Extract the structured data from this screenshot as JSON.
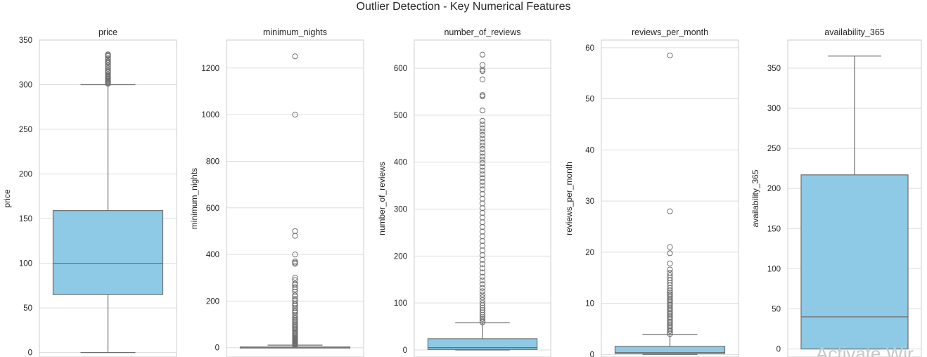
{
  "figure_title": "Outlier Detection - Key Numerical Features",
  "watermark_text": "Activate Wir",
  "colors": {
    "box_fill": "#8ecae6",
    "box_edge": "#6e6e6e",
    "grid": "#dddddd",
    "frame": "#cccccc",
    "text": "#262626"
  },
  "chart_data": [
    {
      "type": "box",
      "title": "price",
      "ylabel": "price",
      "ylim": [
        -5,
        350
      ],
      "yticks": [
        0,
        50,
        100,
        150,
        200,
        250,
        300,
        350
      ],
      "box": {
        "whisker_low": 0,
        "q1": 65,
        "median": 100,
        "q3": 159,
        "whisker_high": 300
      },
      "outliers": [
        301,
        302,
        303,
        304,
        305,
        306,
        307,
        308,
        309,
        310,
        312,
        314,
        315,
        316,
        318,
        320,
        322,
        324,
        325,
        326,
        328,
        330,
        332,
        333,
        334
      ]
    },
    {
      "type": "box",
      "title": "minimum_nights",
      "ylabel": "minimum_nights",
      "ylim": [
        -40,
        1320
      ],
      "yticks": [
        0,
        200,
        400,
        600,
        800,
        1000,
        1200
      ],
      "box": {
        "whisker_low": 1,
        "q1": 1,
        "median": 2,
        "q3": 3,
        "whisker_high": 11
      },
      "outliers": [
        12,
        14,
        15,
        16,
        18,
        20,
        21,
        22,
        25,
        27,
        28,
        30,
        31,
        32,
        35,
        38,
        40,
        42,
        45,
        50,
        55,
        60,
        62,
        65,
        70,
        75,
        80,
        85,
        90,
        95,
        100,
        110,
        115,
        120,
        125,
        130,
        140,
        150,
        155,
        160,
        170,
        180,
        185,
        190,
        200,
        210,
        220,
        225,
        240,
        250,
        260,
        270,
        275,
        290,
        300,
        360,
        365,
        370,
        400,
        480,
        500,
        1000,
        1250
      ]
    },
    {
      "type": "box",
      "title": "number_of_reviews",
      "ylabel": "number_of_reviews",
      "ylim": [
        -15,
        660
      ],
      "yticks": [
        0,
        100,
        200,
        300,
        400,
        500,
        600
      ],
      "box": {
        "whisker_low": 0,
        "q1": 1,
        "median": 5,
        "q3": 24,
        "whisker_high": 58
      },
      "outliers": [
        59,
        62,
        66,
        70,
        75,
        80,
        85,
        90,
        95,
        100,
        106,
        112,
        118,
        125,
        132,
        140,
        148,
        156,
        165,
        174,
        183,
        192,
        202,
        212,
        222,
        232,
        242,
        252,
        262,
        272,
        282,
        292,
        302,
        312,
        322,
        332,
        342,
        350,
        358,
        366,
        374,
        382,
        390,
        398,
        405,
        412,
        420,
        428,
        435,
        442,
        450,
        458,
        465,
        472,
        480,
        488,
        510,
        540,
        543,
        576,
        594,
        597,
        607,
        629
      ]
    },
    {
      "type": "box",
      "title": "reviews_per_month",
      "ylabel": "reviews_per_month",
      "ylim": [
        -0.5,
        61.5
      ],
      "yticks": [
        0,
        10,
        20,
        30,
        40,
        50,
        60
      ],
      "box": {
        "whisker_low": 0.01,
        "q1": 0.19,
        "median": 0.37,
        "q3": 1.58,
        "whisker_high": 3.9
      },
      "outliers": [
        4.0,
        4.3,
        4.6,
        4.9,
        5.2,
        5.5,
        5.8,
        6.1,
        6.4,
        6.7,
        7.0,
        7.3,
        7.6,
        7.9,
        8.2,
        8.5,
        8.8,
        9.1,
        9.4,
        9.7,
        10.0,
        10.3,
        10.6,
        10.9,
        11.2,
        11.5,
        11.8,
        12.1,
        12.5,
        13.0,
        13.5,
        14.0,
        14.5,
        15.0,
        15.5,
        16.0,
        16.6,
        17.8,
        19.8,
        21.0,
        28.0,
        58.5
      ]
    },
    {
      "type": "box",
      "title": "availability_365",
      "ylabel": "availability_365",
      "ylim": [
        -10,
        385
      ],
      "yticks": [
        0,
        50,
        100,
        150,
        200,
        250,
        300,
        350
      ],
      "box": {
        "whisker_low": 0,
        "q1": 0,
        "median": 40,
        "q3": 217,
        "whisker_high": 365
      },
      "outliers": []
    }
  ]
}
